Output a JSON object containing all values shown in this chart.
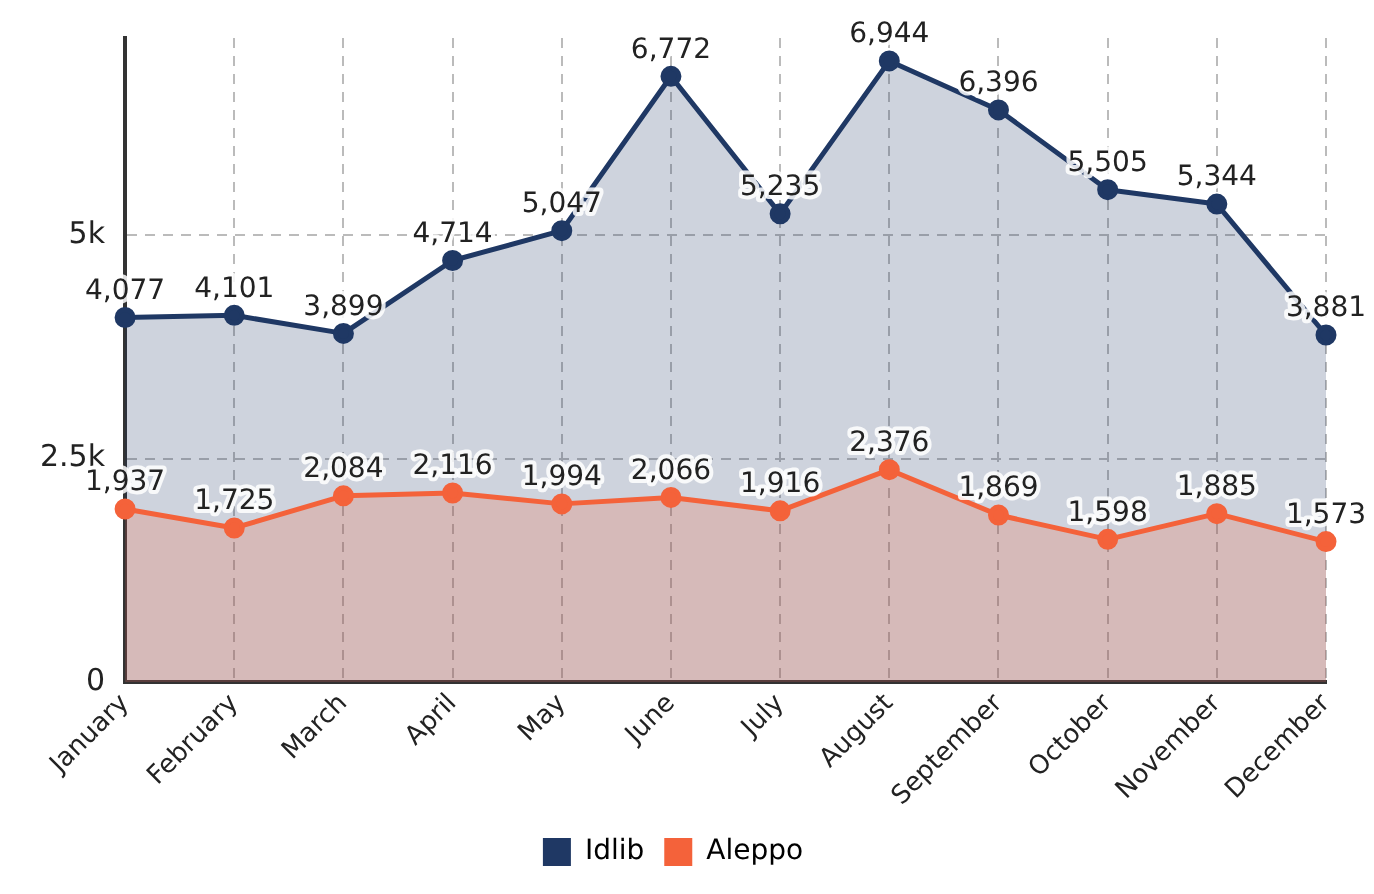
{
  "chart_data": {
    "type": "area",
    "categories": [
      "January",
      "February",
      "March",
      "April",
      "May",
      "June",
      "July",
      "August",
      "September",
      "October",
      "November",
      "December"
    ],
    "series": [
      {
        "name": "Idlib",
        "color": "#1f3864",
        "values": [
          4077,
          4101,
          3899,
          4714,
          5047,
          6772,
          5235,
          6944,
          6396,
          5505,
          5344,
          3881
        ],
        "value_labels": [
          "4,077",
          "4,101",
          "3,899",
          "4,714",
          "5,047",
          "6,772",
          "5,235",
          "6,944",
          "6,396",
          "5,505",
          "5,344",
          "3,881"
        ]
      },
      {
        "name": "Aleppo",
        "color": "#f4623a",
        "values": [
          1937,
          1725,
          2084,
          2116,
          1994,
          2066,
          1916,
          2376,
          1869,
          1598,
          1885,
          1573
        ],
        "value_labels": [
          "1,937",
          "1,725",
          "2,084",
          "2,116",
          "1,994",
          "2,066",
          "1,916",
          "2,376",
          "1,869",
          "1,598",
          "1,885",
          "1,573"
        ]
      }
    ],
    "ylim": [
      0,
      7200
    ],
    "yticks": [
      0,
      {
        "value": 2500,
        "label": "2.5k"
      },
      {
        "value": 5000,
        "label": "5k"
      }
    ],
    "grid": true,
    "legend": "bottom",
    "marker": "circle",
    "line_style": "solid"
  }
}
